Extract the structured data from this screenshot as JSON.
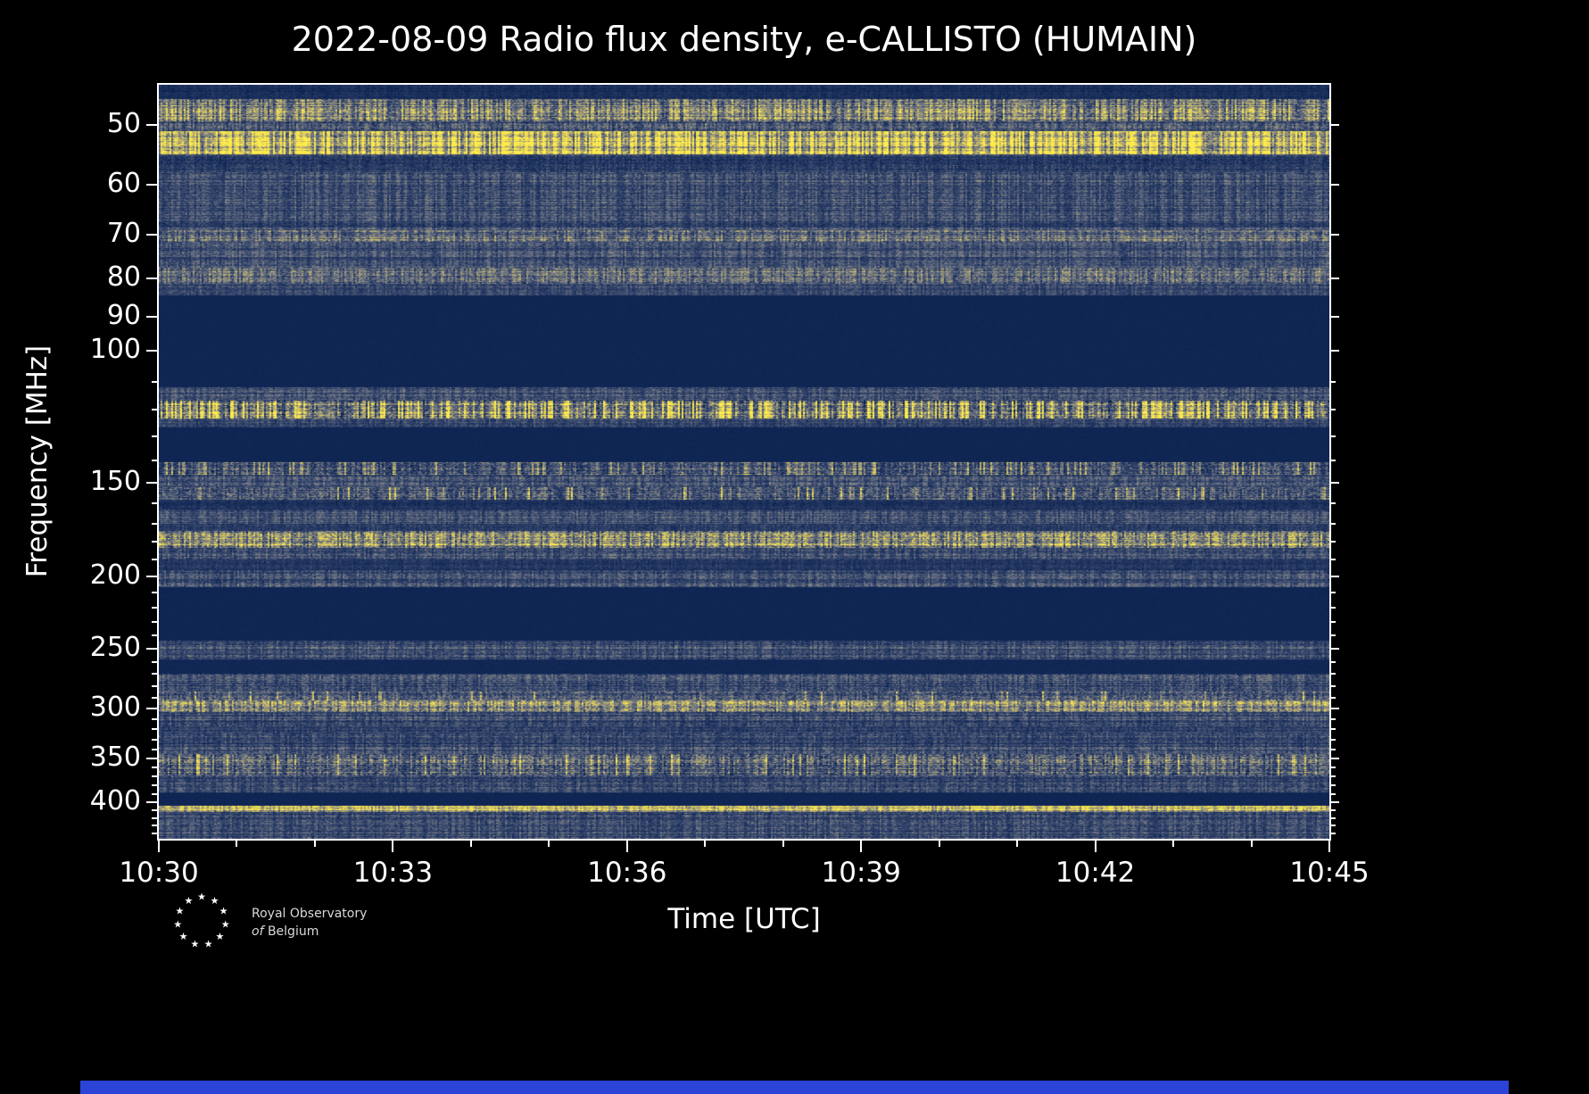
{
  "title": "2022-08-09 Radio flux density, e-CALLISTO (HUMAIN)",
  "xlabel": "Time [UTC]",
  "ylabel": "Frequency [MHz]",
  "logo": {
    "line1": "Royal Observatory",
    "line2_italic": "of",
    "line2_rest": "Belgium"
  },
  "colors": {
    "background": "#000000",
    "text": "#ffffff",
    "plot_border": "#ffffff",
    "footer_bar": "#2b44d7",
    "masked_band": "#0a2150",
    "bright_signal": "#ffec4a"
  },
  "chart_data": {
    "type": "heatmap",
    "title": "2022-08-09 Radio flux density, e-CALLISTO (HUMAIN)",
    "xlabel": "Time [UTC]",
    "ylabel": "Frequency [MHz]",
    "x_range_utc": [
      "10:30",
      "10:45"
    ],
    "x_ticks": [
      "10:30",
      "10:33",
      "10:36",
      "10:39",
      "10:42",
      "10:45"
    ],
    "x_minor_tick_every_minutes": 1,
    "x_total_minutes": 15,
    "y_scale": "log",
    "y_range_mhz": [
      44.2,
      447.7
    ],
    "y_ticks": [
      50,
      60,
      70,
      80,
      90,
      100,
      150,
      200,
      250,
      300,
      350,
      400
    ],
    "y_minor_ticks": [
      110,
      120,
      130,
      140,
      160,
      170,
      180,
      190,
      210,
      220,
      230,
      240,
      260,
      270,
      280,
      290,
      310,
      320,
      330,
      340,
      360,
      370,
      380,
      390,
      410,
      420,
      430,
      440
    ],
    "legend": "none",
    "grid": false,
    "colormap": {
      "name": "cividis-like",
      "stops": [
        [
          0.0,
          "#081f4e"
        ],
        [
          0.25,
          "#2e4068"
        ],
        [
          0.5,
          "#707684"
        ],
        [
          0.75,
          "#bdb16e"
        ],
        [
          1.0,
          "#ffec4a"
        ]
      ]
    },
    "bands": [
      {
        "f0": 44.2,
        "f1": 46.2,
        "base": 0.12,
        "noise": 0.07,
        "row": 0.3,
        "col": 0.3
      },
      {
        "f0": 46.2,
        "f1": 49.4,
        "base": 0.55,
        "noise": 0.22,
        "row": 0.35,
        "col": 0.45
      },
      {
        "f0": 49.4,
        "f1": 51.0,
        "base": 0.34,
        "noise": 0.16,
        "row": 0.3,
        "col": 0.35
      },
      {
        "f0": 51.0,
        "f1": 54.8,
        "base": 0.74,
        "noise": 0.22,
        "row": 0.28,
        "col": 0.45
      },
      {
        "f0": 54.8,
        "f1": 57.8,
        "base": 0.22,
        "noise": 0.12,
        "row": 0.35,
        "col": 0.3
      },
      {
        "f0": 57.8,
        "f1": 69.0,
        "base": 0.3,
        "noise": 0.13,
        "row": 0.35,
        "col": 0.32
      },
      {
        "f0": 69.0,
        "f1": 71.5,
        "base": 0.44,
        "noise": 0.18,
        "row": 0.3,
        "col": 0.35
      },
      {
        "f0": 71.5,
        "f1": 77.5,
        "base": 0.3,
        "noise": 0.13,
        "row": 0.35,
        "col": 0.3
      },
      {
        "f0": 77.5,
        "f1": 81.5,
        "base": 0.42,
        "noise": 0.18,
        "row": 0.3,
        "col": 0.35
      },
      {
        "f0": 81.5,
        "f1": 84.3,
        "base": 0.26,
        "noise": 0.11,
        "row": 0.3,
        "col": 0.3
      },
      {
        "f0": 84.3,
        "f1": 112.0,
        "base": 0.05,
        "noise": 0.012,
        "solid": true
      },
      {
        "f0": 112.0,
        "f1": 116.5,
        "base": 0.3,
        "noise": 0.13,
        "row": 0.35,
        "col": 0.3
      },
      {
        "f0": 116.5,
        "f1": 123.0,
        "base": 0.42,
        "noise": 0.26,
        "row": 0.3,
        "col": 0.5,
        "p": 0.5,
        "hi": 1.9
      },
      {
        "f0": 123.0,
        "f1": 126.5,
        "base": 0.28,
        "noise": 0.11,
        "row": 0.3,
        "col": 0.3
      },
      {
        "f0": 126.5,
        "f1": 141.0,
        "base": 0.05,
        "noise": 0.012,
        "solid": true
      },
      {
        "f0": 141.0,
        "f1": 146.5,
        "base": 0.34,
        "noise": 0.2,
        "row": 0.3,
        "col": 0.4,
        "p": 0.25,
        "hi": 1.8
      },
      {
        "f0": 146.5,
        "f1": 152.0,
        "base": 0.3,
        "noise": 0.13,
        "row": 0.35,
        "col": 0.3
      },
      {
        "f0": 152.0,
        "f1": 158.0,
        "base": 0.32,
        "noise": 0.2,
        "row": 0.3,
        "col": 0.35,
        "p": 0.1,
        "hi": 1.9
      },
      {
        "f0": 158.0,
        "f1": 163.0,
        "base": 0.15,
        "noise": 0.08,
        "row": 0.3,
        "col": 0.3
      },
      {
        "f0": 163.0,
        "f1": 170.0,
        "base": 0.3,
        "noise": 0.13,
        "row": 0.35,
        "col": 0.3
      },
      {
        "f0": 170.0,
        "f1": 174.0,
        "base": 0.21,
        "noise": 0.1,
        "row": 0.3,
        "col": 0.3
      },
      {
        "f0": 174.0,
        "f1": 183.0,
        "base": 0.56,
        "noise": 0.25,
        "row": 0.4,
        "col": 0.4
      },
      {
        "f0": 183.0,
        "f1": 190.0,
        "base": 0.3,
        "noise": 0.13,
        "row": 0.35,
        "col": 0.3
      },
      {
        "f0": 190.0,
        "f1": 196.0,
        "base": 0.17,
        "noise": 0.08,
        "row": 0.3,
        "col": 0.3
      },
      {
        "f0": 196.0,
        "f1": 207.0,
        "base": 0.3,
        "noise": 0.13,
        "row": 0.35,
        "col": 0.3
      },
      {
        "f0": 207.0,
        "f1": 244.0,
        "base": 0.05,
        "noise": 0.012,
        "solid": true
      },
      {
        "f0": 244.0,
        "f1": 258.0,
        "base": 0.3,
        "noise": 0.13,
        "row": 0.4,
        "col": 0.3
      },
      {
        "f0": 258.0,
        "f1": 270.0,
        "base": 0.06,
        "noise": 0.02,
        "solid": true
      },
      {
        "f0": 270.0,
        "f1": 285.0,
        "base": 0.3,
        "noise": 0.14,
        "row": 0.35,
        "col": 0.3
      },
      {
        "f0": 285.0,
        "f1": 293.0,
        "base": 0.33,
        "noise": 0.18,
        "row": 0.3,
        "col": 0.3,
        "p": 0.06,
        "hi": 1.8
      },
      {
        "f0": 293.0,
        "f1": 303.0,
        "base": 0.58,
        "noise": 0.22,
        "row": 0.3,
        "col": 0.35
      },
      {
        "f0": 303.0,
        "f1": 317.0,
        "base": 0.3,
        "noise": 0.13,
        "row": 0.4,
        "col": 0.3
      },
      {
        "f0": 317.0,
        "f1": 323.0,
        "base": 0.22,
        "noise": 0.1,
        "row": 0.3,
        "col": 0.3
      },
      {
        "f0": 323.0,
        "f1": 345.0,
        "base": 0.28,
        "noise": 0.13,
        "row": 0.4,
        "col": 0.3
      },
      {
        "f0": 345.0,
        "f1": 369.0,
        "base": 0.38,
        "noise": 0.22,
        "row": 0.35,
        "col": 0.4,
        "p": 0.15,
        "hi": 1.6
      },
      {
        "f0": 369.0,
        "f1": 388.0,
        "base": 0.28,
        "noise": 0.13,
        "row": 0.35,
        "col": 0.3
      },
      {
        "f0": 388.0,
        "f1": 404.0,
        "base": 0.05,
        "noise": 0.015,
        "solid": true
      },
      {
        "f0": 404.0,
        "f1": 412.0,
        "base": 0.72,
        "noise": 0.18,
        "row": 0.22,
        "col": 0.25
      },
      {
        "f0": 412.0,
        "f1": 447.7,
        "base": 0.28,
        "noise": 0.13,
        "row": 0.4,
        "col": 0.3
      }
    ]
  }
}
